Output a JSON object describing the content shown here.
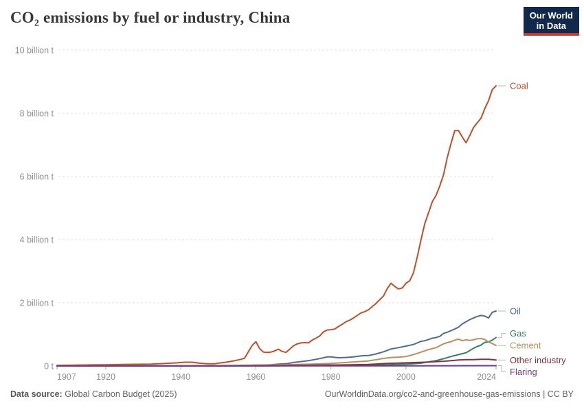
{
  "header": {
    "title": "CO₂ emissions by fuel or industry, China",
    "logo": {
      "line1": "Our World",
      "line2": "in Data",
      "bg_color": "#12294E",
      "accent_color": "#D0342C"
    }
  },
  "footer": {
    "source_label": "Data source:",
    "source_value": "Global Carbon Budget (2025)",
    "credit": "OurWorldinData.org/co2-and-greenhouse-gas-emissions | CC BY"
  },
  "chart_data": {
    "type": "line",
    "title": "CO₂ emissions by fuel or industry, China",
    "xlabel": "",
    "ylabel": "",
    "unit": "billion tonnes of CO₂",
    "grid": "horizontal-dashed",
    "legend_position": "right-end-labels",
    "xlim": [
      1907,
      2024
    ],
    "ylim": [
      0,
      10
    ],
    "x_ticks": [
      1907,
      1920,
      1940,
      1960,
      1980,
      2000,
      2024
    ],
    "y_ticks": [
      {
        "value": 0,
        "label": "0 t"
      },
      {
        "value": 2,
        "label": "2 billion t"
      },
      {
        "value": 4,
        "label": "4 billion t"
      },
      {
        "value": 6,
        "label": "6 billion t"
      },
      {
        "value": 8,
        "label": "8 billion t"
      },
      {
        "value": 10,
        "label": "10 billion t"
      }
    ],
    "series": [
      {
        "name": "Coal",
        "color": "#C14E25",
        "label_dy": 0,
        "points": [
          [
            1907,
            0.02
          ],
          [
            1910,
            0.025
          ],
          [
            1913,
            0.03
          ],
          [
            1916,
            0.035
          ],
          [
            1920,
            0.04
          ],
          [
            1924,
            0.05
          ],
          [
            1928,
            0.055
          ],
          [
            1932,
            0.06
          ],
          [
            1936,
            0.08
          ],
          [
            1939,
            0.1
          ],
          [
            1941,
            0.12
          ],
          [
            1943,
            0.12
          ],
          [
            1945,
            0.09
          ],
          [
            1947,
            0.07
          ],
          [
            1949,
            0.07
          ],
          [
            1950,
            0.09
          ],
          [
            1952,
            0.12
          ],
          [
            1954,
            0.16
          ],
          [
            1956,
            0.21
          ],
          [
            1957,
            0.25
          ],
          [
            1958,
            0.45
          ],
          [
            1959,
            0.65
          ],
          [
            1960,
            0.77
          ],
          [
            1961,
            0.55
          ],
          [
            1962,
            0.44
          ],
          [
            1963,
            0.43
          ],
          [
            1964,
            0.44
          ],
          [
            1965,
            0.48
          ],
          [
            1966,
            0.53
          ],
          [
            1967,
            0.46
          ],
          [
            1968,
            0.43
          ],
          [
            1969,
            0.53
          ],
          [
            1970,
            0.64
          ],
          [
            1971,
            0.7
          ],
          [
            1972,
            0.73
          ],
          [
            1973,
            0.74
          ],
          [
            1974,
            0.73
          ],
          [
            1975,
            0.82
          ],
          [
            1976,
            0.88
          ],
          [
            1977,
            0.95
          ],
          [
            1978,
            1.08
          ],
          [
            1979,
            1.14
          ],
          [
            1980,
            1.15
          ],
          [
            1981,
            1.17
          ],
          [
            1982,
            1.25
          ],
          [
            1983,
            1.32
          ],
          [
            1984,
            1.4
          ],
          [
            1985,
            1.45
          ],
          [
            1986,
            1.52
          ],
          [
            1987,
            1.6
          ],
          [
            1988,
            1.68
          ],
          [
            1989,
            1.72
          ],
          [
            1990,
            1.78
          ],
          [
            1991,
            1.88
          ],
          [
            1992,
            1.98
          ],
          [
            1993,
            2.1
          ],
          [
            1994,
            2.22
          ],
          [
            1995,
            2.45
          ],
          [
            1996,
            2.62
          ],
          [
            1997,
            2.52
          ],
          [
            1998,
            2.44
          ],
          [
            1999,
            2.47
          ],
          [
            2000,
            2.62
          ],
          [
            2001,
            2.7
          ],
          [
            2002,
            2.95
          ],
          [
            2003,
            3.45
          ],
          [
            2004,
            4.0
          ],
          [
            2005,
            4.5
          ],
          [
            2006,
            4.85
          ],
          [
            2007,
            5.2
          ],
          [
            2008,
            5.4
          ],
          [
            2009,
            5.7
          ],
          [
            2010,
            6.05
          ],
          [
            2011,
            6.6
          ],
          [
            2012,
            7.05
          ],
          [
            2013,
            7.45
          ],
          [
            2014,
            7.45
          ],
          [
            2015,
            7.25
          ],
          [
            2016,
            7.07
          ],
          [
            2017,
            7.3
          ],
          [
            2018,
            7.55
          ],
          [
            2019,
            7.7
          ],
          [
            2020,
            7.85
          ],
          [
            2021,
            8.15
          ],
          [
            2022,
            8.4
          ],
          [
            2023,
            8.75
          ],
          [
            2024,
            8.87
          ]
        ]
      },
      {
        "name": "Oil",
        "color": "#4C6A9C",
        "label_dy": 0,
        "points": [
          [
            1907,
            0.003
          ],
          [
            1920,
            0.004
          ],
          [
            1930,
            0.005
          ],
          [
            1940,
            0.006
          ],
          [
            1945,
            0.005
          ],
          [
            1950,
            0.008
          ],
          [
            1955,
            0.012
          ],
          [
            1960,
            0.025
          ],
          [
            1962,
            0.03
          ],
          [
            1964,
            0.04
          ],
          [
            1966,
            0.06
          ],
          [
            1968,
            0.07
          ],
          [
            1970,
            0.11
          ],
          [
            1972,
            0.14
          ],
          [
            1974,
            0.17
          ],
          [
            1976,
            0.21
          ],
          [
            1978,
            0.26
          ],
          [
            1979,
            0.29
          ],
          [
            1980,
            0.29
          ],
          [
            1982,
            0.26
          ],
          [
            1984,
            0.27
          ],
          [
            1986,
            0.29
          ],
          [
            1988,
            0.32
          ],
          [
            1990,
            0.33
          ],
          [
            1992,
            0.38
          ],
          [
            1994,
            0.45
          ],
          [
            1996,
            0.54
          ],
          [
            1998,
            0.58
          ],
          [
            2000,
            0.63
          ],
          [
            2002,
            0.68
          ],
          [
            2004,
            0.78
          ],
          [
            2005,
            0.8
          ],
          [
            2006,
            0.84
          ],
          [
            2007,
            0.88
          ],
          [
            2008,
            0.9
          ],
          [
            2009,
            0.94
          ],
          [
            2010,
            1.03
          ],
          [
            2011,
            1.07
          ],
          [
            2012,
            1.12
          ],
          [
            2013,
            1.17
          ],
          [
            2014,
            1.23
          ],
          [
            2015,
            1.33
          ],
          [
            2016,
            1.4
          ],
          [
            2017,
            1.47
          ],
          [
            2018,
            1.52
          ],
          [
            2019,
            1.57
          ],
          [
            2020,
            1.6
          ],
          [
            2021,
            1.58
          ],
          [
            2022,
            1.52
          ],
          [
            2023,
            1.7
          ],
          [
            2024,
            1.74
          ]
        ]
      },
      {
        "name": "Gas",
        "color": "#2C8465",
        "label_dy": -6,
        "points": [
          [
            1907,
            0.001
          ],
          [
            1950,
            0.002
          ],
          [
            1960,
            0.005
          ],
          [
            1965,
            0.008
          ],
          [
            1970,
            0.012
          ],
          [
            1975,
            0.025
          ],
          [
            1980,
            0.03
          ],
          [
            1985,
            0.028
          ],
          [
            1990,
            0.03
          ],
          [
            1995,
            0.04
          ],
          [
            2000,
            0.06
          ],
          [
            2002,
            0.07
          ],
          [
            2004,
            0.09
          ],
          [
            2006,
            0.13
          ],
          [
            2008,
            0.17
          ],
          [
            2010,
            0.23
          ],
          [
            2012,
            0.3
          ],
          [
            2014,
            0.36
          ],
          [
            2015,
            0.39
          ],
          [
            2016,
            0.42
          ],
          [
            2017,
            0.49
          ],
          [
            2018,
            0.56
          ],
          [
            2019,
            0.62
          ],
          [
            2020,
            0.66
          ],
          [
            2021,
            0.75
          ],
          [
            2022,
            0.76
          ],
          [
            2023,
            0.82
          ],
          [
            2024,
            0.9
          ]
        ]
      },
      {
        "name": "Cement",
        "color": "#BC8E5A",
        "label_dy": 0,
        "points": [
          [
            1907,
            0.001
          ],
          [
            1930,
            0.004
          ],
          [
            1940,
            0.006
          ],
          [
            1950,
            0.01
          ],
          [
            1955,
            0.02
          ],
          [
            1960,
            0.03
          ],
          [
            1965,
            0.035
          ],
          [
            1970,
            0.045
          ],
          [
            1975,
            0.06
          ],
          [
            1980,
            0.08
          ],
          [
            1985,
            0.12
          ],
          [
            1990,
            0.16
          ],
          [
            1992,
            0.2
          ],
          [
            1994,
            0.24
          ],
          [
            1996,
            0.27
          ],
          [
            1998,
            0.28
          ],
          [
            2000,
            0.3
          ],
          [
            2002,
            0.36
          ],
          [
            2004,
            0.44
          ],
          [
            2006,
            0.52
          ],
          [
            2008,
            0.58
          ],
          [
            2010,
            0.7
          ],
          [
            2011,
            0.74
          ],
          [
            2012,
            0.77
          ],
          [
            2013,
            0.82
          ],
          [
            2014,
            0.85
          ],
          [
            2015,
            0.8
          ],
          [
            2016,
            0.83
          ],
          [
            2017,
            0.81
          ],
          [
            2018,
            0.83
          ],
          [
            2019,
            0.86
          ],
          [
            2020,
            0.87
          ],
          [
            2021,
            0.84
          ],
          [
            2022,
            0.76
          ],
          [
            2023,
            0.71
          ],
          [
            2024,
            0.65
          ]
        ]
      },
      {
        "name": "Other industry",
        "color": "#883039",
        "label_dy": 0,
        "points": [
          [
            1907,
            0.001
          ],
          [
            1950,
            0.005
          ],
          [
            1960,
            0.01
          ],
          [
            1970,
            0.02
          ],
          [
            1980,
            0.03
          ],
          [
            1985,
            0.04
          ],
          [
            1990,
            0.05
          ],
          [
            1995,
            0.08
          ],
          [
            2000,
            0.1
          ],
          [
            2005,
            0.12
          ],
          [
            2008,
            0.14
          ],
          [
            2010,
            0.15
          ],
          [
            2012,
            0.17
          ],
          [
            2014,
            0.19
          ],
          [
            2016,
            0.2
          ],
          [
            2018,
            0.2
          ],
          [
            2020,
            0.21
          ],
          [
            2022,
            0.21
          ],
          [
            2024,
            0.19
          ]
        ]
      },
      {
        "name": "Flaring",
        "color": "#6D3E91",
        "label_dy": 9,
        "points": [
          [
            1907,
            0.0
          ],
          [
            1960,
            0.002
          ],
          [
            1970,
            0.004
          ],
          [
            1980,
            0.006
          ],
          [
            1990,
            0.006
          ],
          [
            2000,
            0.006
          ],
          [
            2010,
            0.008
          ],
          [
            2020,
            0.01
          ],
          [
            2024,
            0.01
          ]
        ]
      }
    ]
  }
}
